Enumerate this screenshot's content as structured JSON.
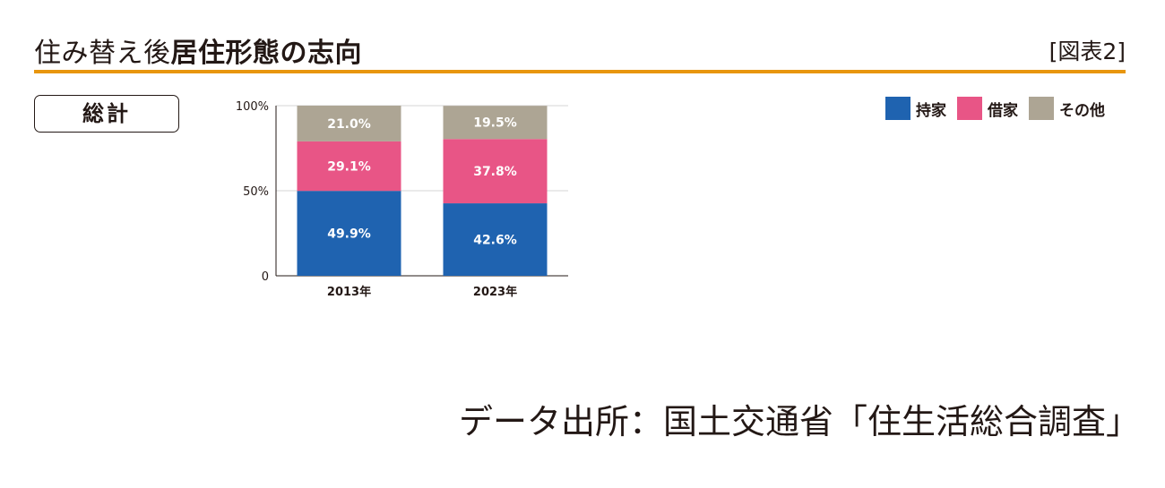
{
  "header": {
    "title_prefix": "住み替え後",
    "title_main": "居住形態の志向",
    "figure_label": "[図表2]",
    "accent_color": "#E8960E"
  },
  "panel_label": "総計",
  "legend": [
    {
      "label": "持家",
      "color": "#1F63B0"
    },
    {
      "label": "借家",
      "color": "#E85586"
    },
    {
      "label": "その他",
      "color": "#ADA594"
    }
  ],
  "chart_data": {
    "type": "bar",
    "stacked": true,
    "categories": [
      "2013年",
      "2023年"
    ],
    "series": [
      {
        "name": "持家",
        "values": [
          49.9,
          42.6
        ],
        "labels": [
          "49.9%",
          "42.6%"
        ],
        "color": "#1F63B0"
      },
      {
        "name": "借家",
        "values": [
          29.1,
          37.8
        ],
        "labels": [
          "29.1%",
          "37.8%"
        ],
        "color": "#E85586"
      },
      {
        "name": "その他",
        "values": [
          21.0,
          19.5
        ],
        "labels": [
          "21.0%",
          "19.5%"
        ],
        "color": "#ADA594"
      }
    ],
    "ylim": [
      0,
      100
    ],
    "yticks": [
      {
        "value": 0,
        "label": "0"
      },
      {
        "value": 50,
        "label": "50%"
      },
      {
        "value": 100,
        "label": "100%"
      }
    ],
    "grid": true
  },
  "source": "データ出所：国土交通省「住生活総合調査」"
}
